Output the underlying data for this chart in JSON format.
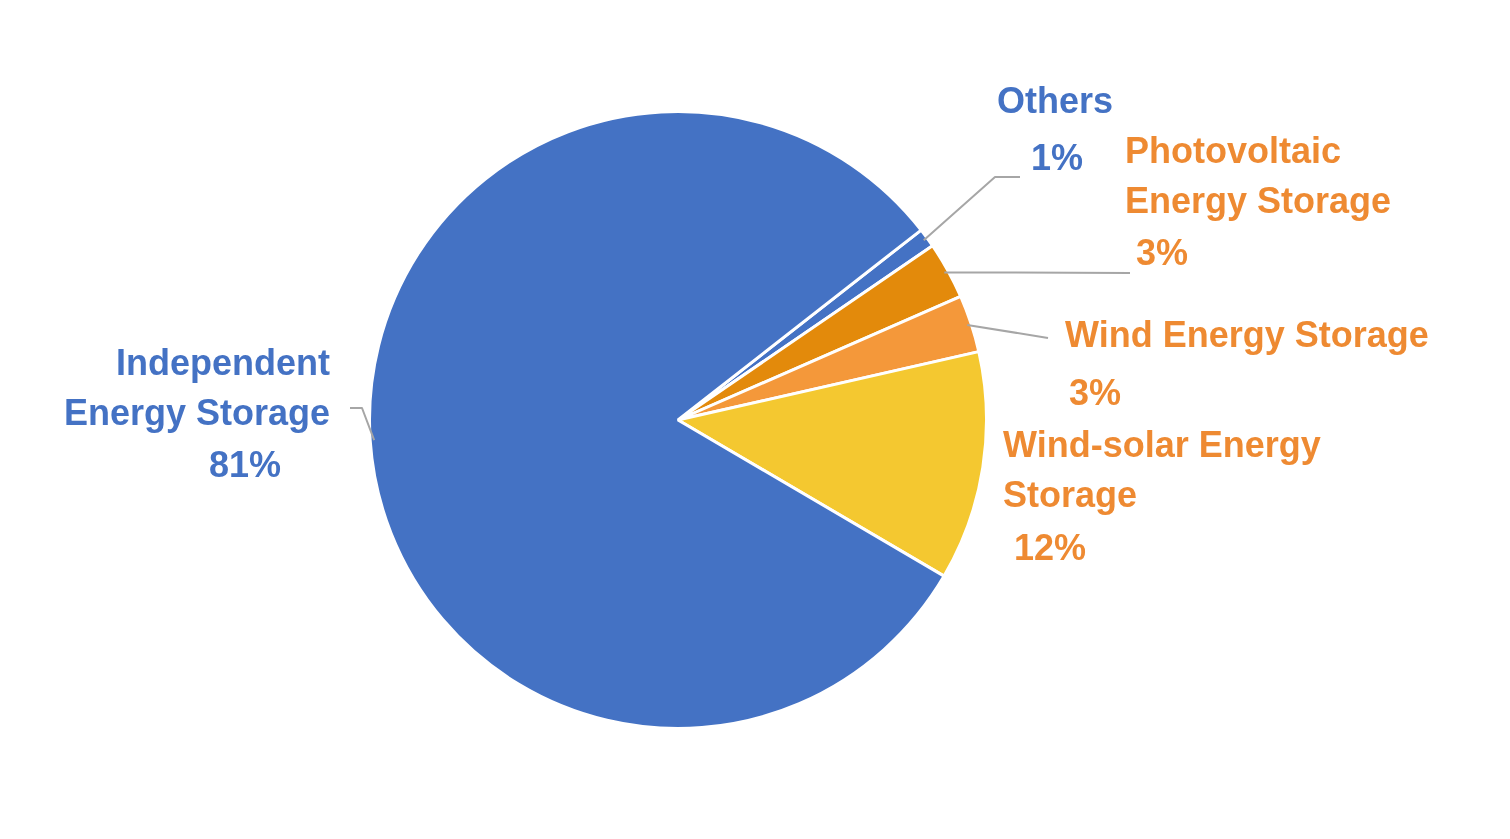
{
  "chart_data": {
    "type": "pie",
    "categories": [
      "Others",
      "Photovoltaic Energy Storage",
      "Wind Energy Storage",
      "Wind-solar Energy Storage",
      "Independent Energy Storage"
    ],
    "values": [
      1,
      3,
      3,
      12,
      81
    ],
    "colors": [
      "#4472c4",
      "#e38a0b",
      "#f4983a",
      "#f4c830",
      "#4472c4"
    ],
    "value_labels": [
      "1%",
      "3%",
      "3%",
      "12%",
      "81%"
    ],
    "legend": false
  }
}
